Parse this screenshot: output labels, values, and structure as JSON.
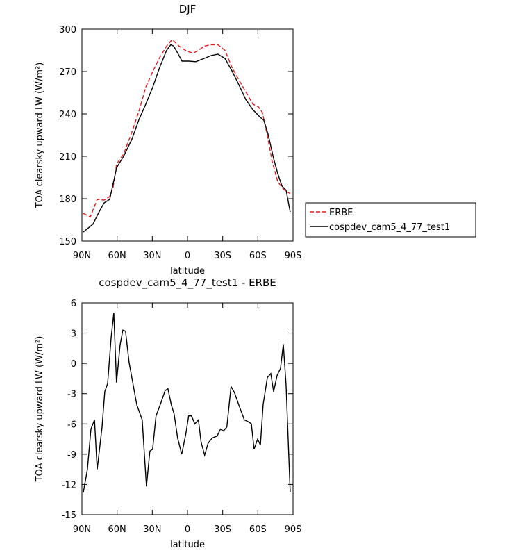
{
  "chart_data": [
    {
      "type": "line",
      "title": "DJF",
      "xlabel": "latitude",
      "ylabel": "TOA clearsky upward LW (W/m²)",
      "xlim": [
        90,
        -90
      ],
      "ylim": [
        150,
        300
      ],
      "xticks": [
        {
          "value": 90,
          "label": "90N"
        },
        {
          "value": 60,
          "label": "60N"
        },
        {
          "value": 30,
          "label": "30N"
        },
        0,
        {
          "value": -30,
          "label": "30S"
        },
        {
          "value": -60,
          "label": "60S"
        },
        {
          "value": -90,
          "label": "90S"
        }
      ],
      "yticks": [
        150,
        180,
        210,
        240,
        270,
        300
      ],
      "legend": "right",
      "series": [
        {
          "name": "ERBE",
          "color": "#e41a1c",
          "line_style": "dashed",
          "x": [
            88.8,
            82.9,
            77,
            71.1,
            66.3,
            63.4,
            60.4,
            54.5,
            47.4,
            41.4,
            35.5,
            29.6,
            23.7,
            17.8,
            13,
            7.1,
            1.2,
            -4.7,
            -9.5,
            -14.2,
            -20.1,
            -26,
            -32,
            -37.9,
            -43.8,
            -49.7,
            -55.7,
            -60.4,
            -63.9,
            -67.5,
            -72.2,
            -77,
            -80.5,
            -84.1,
            -87.6
          ],
          "values": [
            169.6,
            167,
            179.5,
            179,
            181.5,
            188,
            204.6,
            211.5,
            227,
            242,
            259,
            270,
            280,
            288,
            292.6,
            288,
            284.7,
            283,
            285,
            288,
            289,
            289,
            285,
            273,
            264,
            255.7,
            247,
            245,
            241,
            227,
            206.5,
            192,
            188,
            185,
            183.7
          ]
        },
        {
          "name": "cospdev_cam5_4_77_test1",
          "color": "#000000",
          "line_style": "solid",
          "x": [
            88.8,
            80.5,
            75.8,
            71.1,
            66.3,
            60.4,
            54.5,
            47.4,
            41.4,
            35.5,
            29.6,
            23.7,
            17.8,
            14.2,
            11.8,
            8.3,
            4.7,
            -1.2,
            -7.1,
            -14.2,
            -20.1,
            -26,
            -32,
            -37.9,
            -43.8,
            -49.7,
            -55.7,
            -61.6,
            -65.1,
            -68.7,
            -73.4,
            -77,
            -80.5,
            -84.1,
            -87.6
          ],
          "values": [
            156.4,
            162,
            170,
            177,
            179.5,
            202,
            210,
            222,
            236,
            247,
            259,
            273,
            285,
            289,
            288,
            283,
            277.4,
            277.4,
            277,
            279.3,
            281.3,
            282.3,
            279.3,
            270.5,
            260.6,
            250.3,
            243,
            238,
            235.5,
            225.7,
            208.5,
            197.7,
            189,
            186,
            170.6
          ]
        }
      ]
    },
    {
      "type": "line",
      "title": "cospdev_cam5_4_77_test1 - ERBE",
      "xlabel": "latitude",
      "ylabel": "TOA clearsky upward LW (W/m²)",
      "xlim": [
        90,
        -90
      ],
      "ylim": [
        -15,
        6
      ],
      "xticks": [
        {
          "value": 90,
          "label": "90N"
        },
        {
          "value": 60,
          "label": "60N"
        },
        {
          "value": 30,
          "label": "30N"
        },
        0,
        {
          "value": -30,
          "label": "30S"
        },
        {
          "value": -60,
          "label": "60S"
        },
        {
          "value": -90,
          "label": "90S"
        }
      ],
      "yticks": [
        -15,
        -12,
        -9,
        -6,
        -3,
        0,
        3,
        6
      ],
      "series": [
        {
          "color": "#000000",
          "line_style": "solid",
          "x": [
            88.8,
            85.3,
            82.3,
            79.3,
            77,
            72.8,
            70.5,
            68.1,
            65.1,
            62.8,
            60.5,
            57.5,
            55.1,
            52.8,
            49.8,
            43.2,
            38.6,
            35,
            32.1,
            29.7,
            26.8,
            22.6,
            19.1,
            16.7,
            13.8,
            11.4,
            8.4,
            4.9,
            1.4,
            -1,
            -3.4,
            -6.3,
            -9.3,
            -11.6,
            -14.6,
            -17.6,
            -21.1,
            -25.3,
            -28.2,
            -30.6,
            -33.6,
            -37.1,
            -40.1,
            -43.7,
            -48.5,
            -52.1,
            -54.5,
            -56.8,
            -59.8,
            -62.2,
            -64.5,
            -68.1,
            -71,
            -73.4,
            -76.4,
            -79.3,
            -81.7,
            -84.1,
            -87.6
          ],
          "values": [
            -12.8,
            -10.5,
            -6.5,
            -5.6,
            -10.5,
            -6.3,
            -2.8,
            -2,
            2.6,
            5,
            -1.9,
            1.8,
            3.3,
            3.2,
            0.1,
            -4.1,
            -5.6,
            -12.2,
            -8.7,
            -8.5,
            -5.2,
            -3.9,
            -2.7,
            -2.5,
            -4.1,
            -5,
            -7.4,
            -9,
            -7,
            -5.2,
            -5.2,
            -6,
            -5.6,
            -7.8,
            -9.1,
            -7.9,
            -7.4,
            -7.2,
            -6.5,
            -6.7,
            -6.3,
            -2.3,
            -2.9,
            -4.1,
            -5.6,
            -5.8,
            -6,
            -8.5,
            -7.5,
            -8.1,
            -4.1,
            -1.4,
            -1,
            -2.8,
            -1.2,
            -0.5,
            1.9,
            -2.2,
            -12.8
          ]
        }
      ]
    }
  ]
}
